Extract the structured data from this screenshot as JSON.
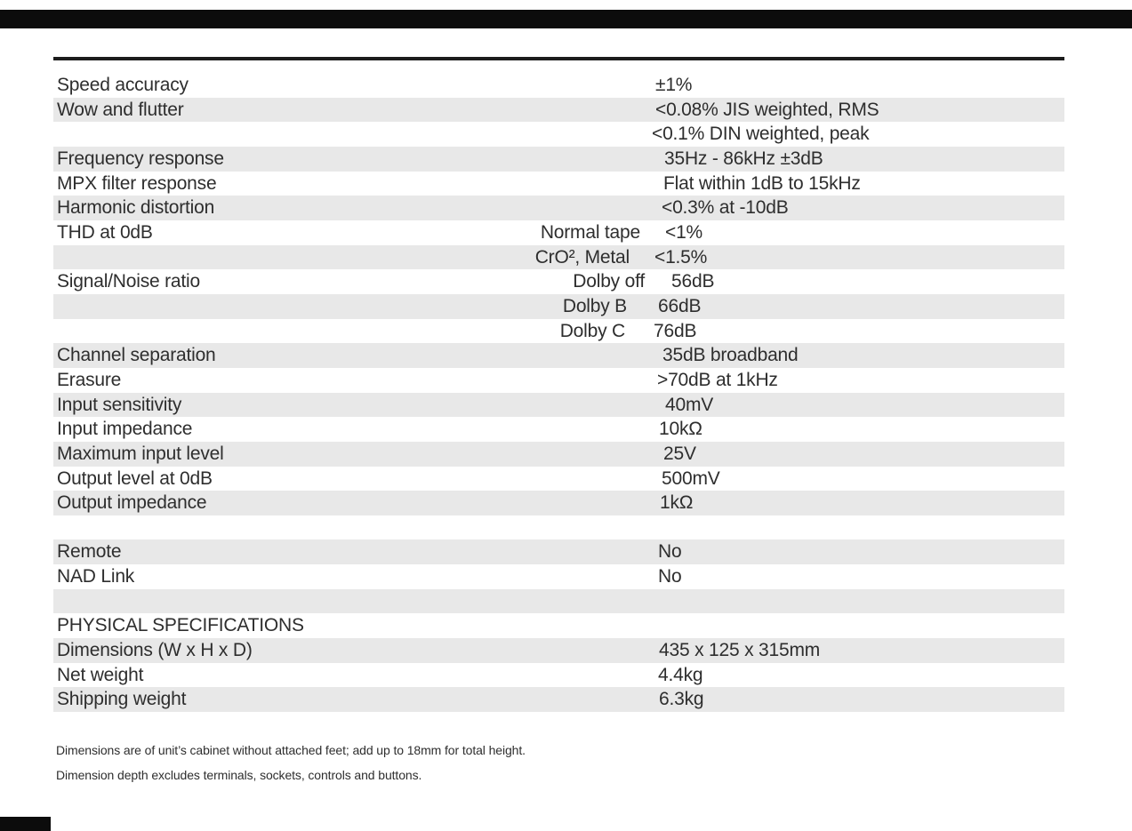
{
  "page": {
    "background_color": "#ffffff",
    "text_color": "#2e2e2e",
    "stripe_color": "#e8e8e8",
    "rule_color": "#1d1d1d",
    "scan_bar_color": "#0c0c0c"
  },
  "table": {
    "rows": [
      {
        "label": "Speed accuracy",
        "mid": "",
        "value": "±1%",
        "shaded": false,
        "value_indent": -3
      },
      {
        "label": "Wow and flutter",
        "mid": "",
        "value": "<0.08% JIS weighted, RMS",
        "shaded": true,
        "value_indent": -3
      },
      {
        "label": "",
        "mid": "",
        "value": "<0.1% DIN weighted, peak",
        "shaded": false,
        "value_indent": -7
      },
      {
        "label": "Frequency response",
        "mid": "",
        "value": "35Hz - 86kHz ±3dB",
        "shaded": true,
        "value_indent": 7
      },
      {
        "label": "MPX filter response",
        "mid": "",
        "value": "Flat within 1dB to 15kHz",
        "shaded": false,
        "value_indent": 6
      },
      {
        "label": "Harmonic distortion",
        "mid": "",
        "value": "<0.3% at -10dB",
        "shaded": true,
        "value_indent": 4
      },
      {
        "label": "THD at 0dB",
        "mid": "Normal tape",
        "value": "<1%",
        "shaded": false,
        "value_indent": 8,
        "mid_indent": -2
      },
      {
        "label": "",
        "mid": "CrO², Metal",
        "value": "<1.5%",
        "shaded": true,
        "value_indent": -4,
        "mid_indent": -14
      },
      {
        "label": "Signal/Noise ratio",
        "mid": "Dolby off",
        "value": "56dB",
        "shaded": false,
        "value_indent": 15,
        "mid_indent": 3
      },
      {
        "label": "",
        "mid": "Dolby B",
        "value": "66dB",
        "shaded": true,
        "value_indent": 0,
        "mid_indent": -17
      },
      {
        "label": "",
        "mid": "Dolby C",
        "value": "76dB",
        "shaded": false,
        "value_indent": -5,
        "mid_indent": -19
      },
      {
        "label": "Channel separation",
        "mid": "",
        "value": "35dB broadband",
        "shaded": true,
        "value_indent": 5
      },
      {
        "label": "Erasure",
        "mid": "",
        "value": ">70dB at 1kHz",
        "shaded": false,
        "value_indent": -1
      },
      {
        "label": "Input sensitivity",
        "mid": "",
        "value": "40mV",
        "shaded": true,
        "value_indent": 8
      },
      {
        "label": "Input impedance",
        "mid": "",
        "value": "10kΩ",
        "shaded": false,
        "value_indent": 1
      },
      {
        "label": "Maximum input level",
        "mid": "",
        "value": "25V",
        "shaded": true,
        "value_indent": 6
      },
      {
        "label": "Output level at 0dB",
        "mid": "",
        "value": "500mV",
        "shaded": false,
        "value_indent": 4
      },
      {
        "label": "Output impedance",
        "mid": "",
        "value": "1kΩ",
        "shaded": true,
        "value_indent": 2
      },
      {
        "label": "",
        "mid": "",
        "value": "",
        "shaded": false
      },
      {
        "label": "Remote",
        "mid": "",
        "value": "No",
        "shaded": true,
        "value_indent": 0
      },
      {
        "label": "NAD Link",
        "mid": "",
        "value": "No",
        "shaded": false,
        "value_indent": 0
      },
      {
        "label": "",
        "mid": "",
        "value": "",
        "shaded": true
      },
      {
        "label": "PHYSICAL SPECIFICATIONS",
        "mid": "",
        "value": "",
        "shaded": false
      },
      {
        "label": "Dimensions (W x H x D)",
        "mid": "",
        "value": "435 x 125 x 315mm",
        "shaded": true,
        "value_indent": 1
      },
      {
        "label": "Net weight",
        "mid": "",
        "value": "4.4kg",
        "shaded": false,
        "value_indent": 0
      },
      {
        "label": "Shipping weight",
        "mid": "",
        "value": "6.3kg",
        "shaded": true,
        "value_indent": 1
      }
    ]
  },
  "footnotes": [
    "Dimensions are of unit’s cabinet without attached feet; add up to 18mm for total height.",
    "Dimension depth excludes terminals, sockets, controls and buttons."
  ]
}
